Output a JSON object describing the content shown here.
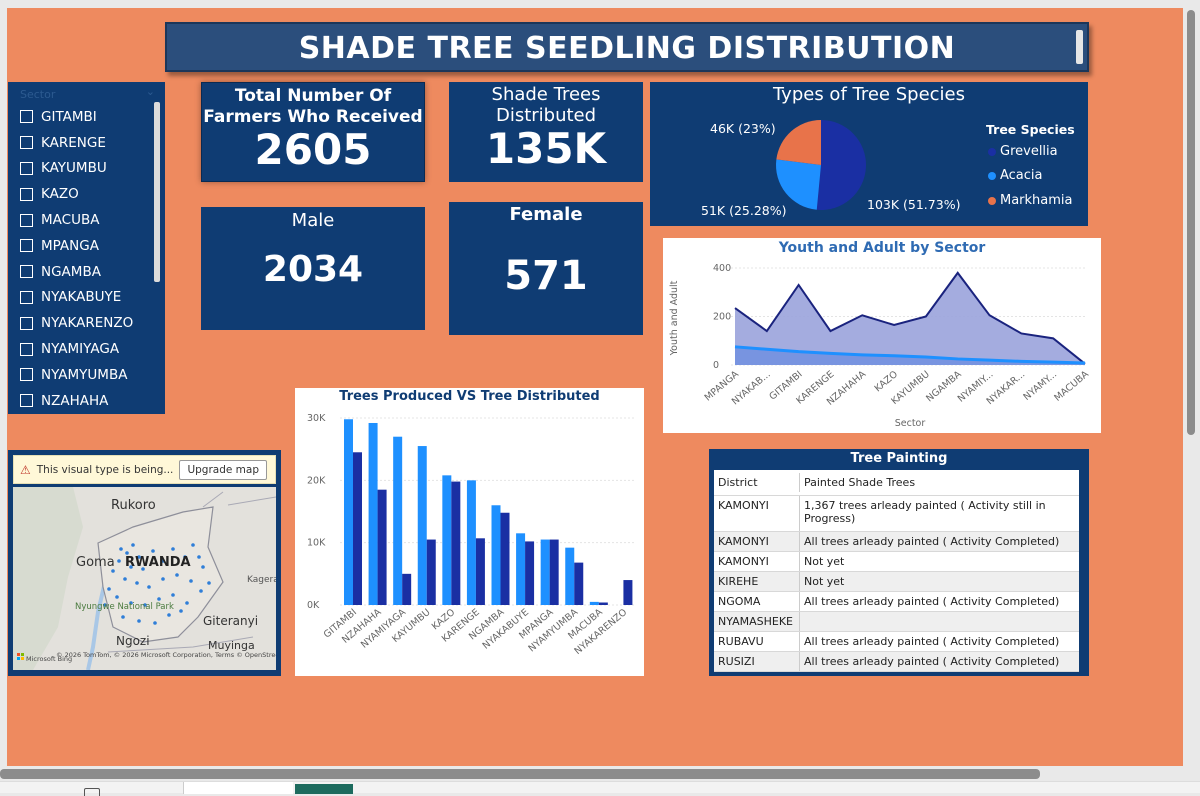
{
  "title": "SHADE TREE SEEDLING DISTRIBUTION",
  "slicer": {
    "header": "Sector",
    "items": [
      "GITAMBI",
      "KARENGE",
      "KAYUMBU",
      "KAZO",
      "MACUBA",
      "MPANGA",
      "NGAMBA",
      "NYAKABUYE",
      "NYAKARENZO",
      "NYAMIYAGA",
      "NYAMYUMBA",
      "NZAHAHA"
    ]
  },
  "kpis": {
    "total_label": "Total Number Of Farmers Who Received",
    "total_value": "2605",
    "distributed_label": "Shade Trees Distributed",
    "distributed_value": "135K",
    "male_label": "Male",
    "male_value": "2034",
    "female_label": "Female",
    "female_value": "571"
  },
  "colors": {
    "navy": "#0f3c73",
    "orange": "#ee8a5f",
    "grevellia": "#1a2fa3",
    "acacia": "#1e90ff",
    "markhamia": "#e8734a"
  },
  "chart_data": [
    {
      "type": "pie",
      "title": "Types of Tree Species",
      "legend_title": "Tree Species",
      "legend_position": "right",
      "labels": [
        "Grevellia",
        "Acacia",
        "Markhamia"
      ],
      "values": [
        103000,
        51000,
        46000
      ],
      "percent": [
        51.73,
        25.28,
        23
      ],
      "data_labels": [
        "103K (51.73%)",
        "51K (25.28%)",
        "46K (23%)"
      ]
    },
    {
      "type": "area",
      "title": "Youth and Adult by Sector",
      "xlabel": "Sector",
      "ylabel": "Youth and Adult",
      "ylim": [
        0,
        400
      ],
      "yticks": [
        "0",
        "200",
        "400"
      ],
      "categories": [
        "MPANGA",
        "NYAKAB...",
        "GITAMBI",
        "KARENGE",
        "NZAHAHA",
        "KAZO",
        "KAYUMBU",
        "NGAMBA",
        "NYAMIY...",
        "NYAKAR...",
        "NYAMY...",
        "MACUBA"
      ],
      "series": [
        {
          "values": [
            235,
            140,
            330,
            140,
            205,
            165,
            200,
            380,
            205,
            130,
            110,
            5
          ]
        },
        {
          "values": [
            75,
            65,
            55,
            48,
            42,
            38,
            33,
            25,
            20,
            15,
            12,
            8
          ]
        }
      ]
    },
    {
      "type": "bar",
      "title": "Trees Produced VS Tree Distributed",
      "ylim": [
        0,
        30000
      ],
      "yticks": [
        "0K",
        "10K",
        "20K",
        "30K"
      ],
      "categories": [
        "GITAMBI",
        "NZAHAHA",
        "NYAMIYAGA",
        "KAYUMBU",
        "KAZO",
        "KARENGE",
        "NGAMBA",
        "NYAKABUYE",
        "MPANGA",
        "NYAMYUMBA",
        "MACUBA",
        "NYAKARENZO"
      ],
      "series": [
        {
          "values": [
            29800,
            29200,
            27000,
            25500,
            20800,
            20000,
            16000,
            11500,
            10500,
            9200,
            500,
            0
          ]
        },
        {
          "values": [
            24500,
            18500,
            5000,
            10500,
            19800,
            10700,
            14800,
            10200,
            10500,
            6800,
            400,
            4000
          ]
        }
      ]
    }
  ],
  "map": {
    "warning": "This visual type is being...",
    "upgrade": "Upgrade map",
    "places": [
      "Rukoro",
      "Goma",
      "RWANDA",
      "Kagera",
      "Nyungwe National Park",
      "Giteranyi",
      "Ngozi",
      "Muyinga"
    ],
    "attribution": "© 2026 TomTom, © 2026 Microsoft Corporation, Terms © OpenStreetMap",
    "brand": "Microsoft Bing"
  },
  "table": {
    "title": "Tree Painting",
    "headers": [
      "District",
      "Painted Shade Trees"
    ],
    "rows": [
      [
        "KAMONYI",
        "1,367 trees arleady painted ( Activity still in Progress)"
      ],
      [
        "KAMONYI",
        "All trees arleady painted ( Activity Completed)"
      ],
      [
        "KAMONYI",
        "Not yet"
      ],
      [
        "KIREHE",
        "Not yet"
      ],
      [
        "NGOMA",
        "All trees arleady painted ( Activity Completed)"
      ],
      [
        "NYAMASHEKE",
        ""
      ],
      [
        "RUBAVU",
        "All trees arleady painted ( Activity Completed)"
      ],
      [
        "RUSIZI",
        "All trees arleady painted ( Activity Completed)"
      ]
    ]
  }
}
